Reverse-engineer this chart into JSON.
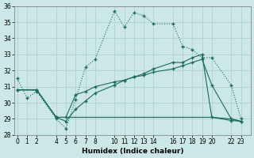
{
  "xlabel": "Humidex (Indice chaleur)",
  "bg_color": "#cce8e6",
  "grid_color": "#aacfcc",
  "line_color": "#1a6b5e",
  "ylim": [
    28,
    36
  ],
  "yticks": [
    28,
    29,
    30,
    31,
    32,
    33,
    34,
    35,
    36
  ],
  "xtick_positions": [
    0,
    1,
    2,
    4,
    5,
    6,
    7,
    8,
    10,
    11,
    12,
    13,
    14,
    16,
    17,
    18,
    19,
    20,
    22,
    23
  ],
  "xlim": [
    -0.3,
    24.0
  ],
  "line1_x": [
    0,
    1,
    2,
    4,
    5,
    6,
    7,
    8,
    10,
    11,
    12,
    13,
    14,
    16,
    17,
    18,
    19,
    20,
    22,
    23
  ],
  "line1_y": [
    31.5,
    30.3,
    30.7,
    29.0,
    28.4,
    30.2,
    32.2,
    32.7,
    35.7,
    34.7,
    35.6,
    35.4,
    34.9,
    34.9,
    33.5,
    33.3,
    32.8,
    32.8,
    31.1,
    29.0
  ],
  "line2_x": [
    0,
    2,
    4,
    5,
    6,
    7,
    8,
    10,
    11,
    12,
    13,
    14,
    16,
    17,
    18,
    19,
    20,
    22,
    23
  ],
  "line2_y": [
    30.8,
    30.8,
    29.1,
    29.1,
    30.5,
    30.7,
    31.0,
    31.3,
    31.4,
    31.6,
    31.7,
    31.9,
    32.1,
    32.3,
    32.5,
    32.7,
    31.1,
    29.0,
    28.85
  ],
  "line3_x": [
    0,
    2,
    4,
    5,
    6,
    7,
    8,
    10,
    11,
    12,
    13,
    14,
    16,
    17,
    18,
    19,
    20,
    22,
    23
  ],
  "line3_y": [
    30.8,
    30.8,
    29.1,
    29.1,
    29.1,
    29.1,
    29.1,
    29.1,
    29.1,
    29.1,
    29.1,
    29.1,
    29.1,
    29.1,
    29.1,
    29.1,
    29.1,
    29.0,
    28.85
  ],
  "line4_x": [
    0,
    2,
    4,
    5,
    6,
    7,
    8,
    10,
    11,
    12,
    13,
    14,
    16,
    17,
    18,
    19,
    20,
    22,
    23
  ],
  "line4_y": [
    30.8,
    30.8,
    29.1,
    28.85,
    29.6,
    30.1,
    30.6,
    31.1,
    31.4,
    31.6,
    31.8,
    32.1,
    32.5,
    32.5,
    32.8,
    33.0,
    29.1,
    28.9,
    28.85
  ]
}
